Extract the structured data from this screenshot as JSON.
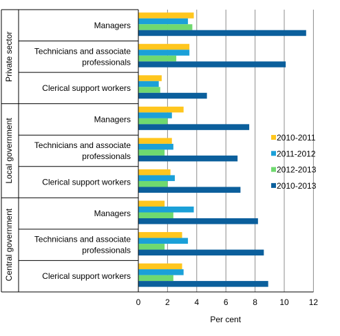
{
  "chart_data": {
    "type": "bar",
    "orientation": "horizontal",
    "xlabel": "Per cent",
    "xlim": [
      0,
      12
    ],
    "xticks": [
      "0",
      "2",
      "4",
      "6",
      "8",
      "10",
      "12"
    ],
    "grid": "vertical",
    "legend_position": "right",
    "colors": {
      "2010-2011": "#ffc61e",
      "2011-2012": "#1ba0d8",
      "2012-2013": "#6fd96f",
      "2010-2013": "#0b5f9c"
    },
    "series_names": [
      "2010-2011",
      "2011-2012",
      "2012-2013",
      "2010-2013"
    ],
    "groups": [
      {
        "name": "Private sector",
        "categories": [
          {
            "label": [
              "Managers"
            ],
            "values": [
              3.8,
              3.4,
              3.7,
              11.5
            ]
          },
          {
            "label": [
              "Technicians and associate",
              "professionals"
            ],
            "values": [
              3.5,
              3.5,
              2.6,
              10.1
            ]
          },
          {
            "label": [
              "Clerical support workers"
            ],
            "values": [
              1.6,
              1.4,
              1.5,
              4.7
            ]
          }
        ]
      },
      {
        "name": "Local government",
        "categories": [
          {
            "label": [
              "Managers"
            ],
            "values": [
              3.1,
              2.3,
              2.0,
              7.6
            ]
          },
          {
            "label": [
              "Technicians and associate",
              "professionals"
            ],
            "values": [
              2.3,
              2.4,
              1.8,
              6.8
            ]
          },
          {
            "label": [
              "Clerical support workers"
            ],
            "values": [
              2.2,
              2.5,
              2.0,
              7.0
            ]
          }
        ]
      },
      {
        "name": "Central government",
        "categories": [
          {
            "label": [
              "Managers"
            ],
            "values": [
              1.8,
              3.8,
              2.4,
              8.2
            ]
          },
          {
            "label": [
              "Technicians and associate",
              "professionals"
            ],
            "values": [
              3.0,
              3.4,
              1.8,
              8.6
            ]
          },
          {
            "label": [
              "Clerical support workers"
            ],
            "values": [
              3.0,
              3.1,
              2.4,
              8.9
            ]
          }
        ]
      }
    ]
  }
}
